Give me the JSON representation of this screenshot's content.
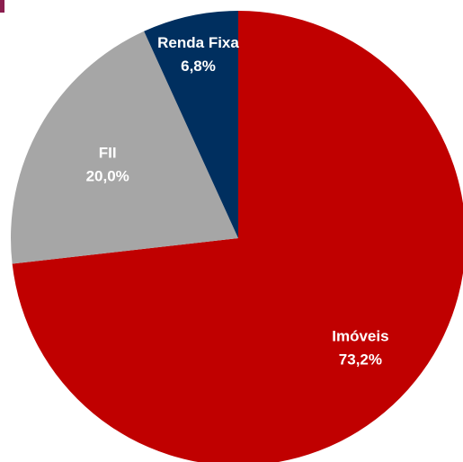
{
  "chart_data": {
    "type": "pie",
    "title": "",
    "slices": [
      {
        "label": "Imóveis",
        "value": 73.2,
        "value_label": "73,2%",
        "color": "#c00000"
      },
      {
        "label": "FII",
        "value": 20.0,
        "value_label": "20,0%",
        "color": "#a6a6a6"
      },
      {
        "label": "Renda Fixa",
        "value": 6.8,
        "value_label": "6,8%",
        "color": "#002f5f"
      }
    ],
    "start_angle_deg": 0,
    "direction": "clockwise",
    "legend": "none"
  }
}
